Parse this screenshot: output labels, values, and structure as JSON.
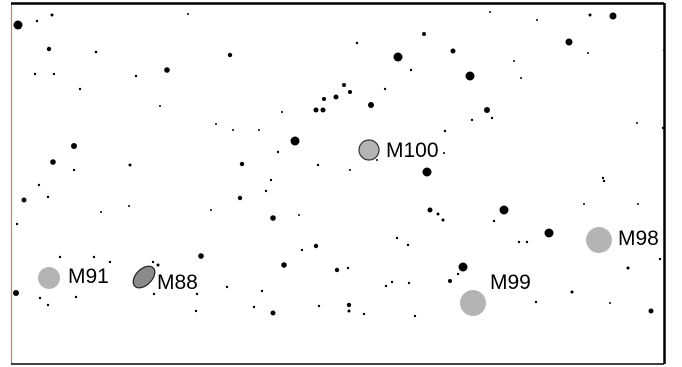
{
  "map": {
    "colors": {
      "background": "#ffffff",
      "star": "#000000",
      "galaxy_fill": "#b4b4b4",
      "galaxy_outline": "#333333",
      "frame_left": "#b08a84",
      "frame_main": "#000000"
    },
    "objects": [
      {
        "label": "M100",
        "kind": "galaxy-outlined"
      },
      {
        "label": "M98",
        "kind": "galaxy-faint"
      },
      {
        "label": "M99",
        "kind": "galaxy-faint"
      },
      {
        "label": "M91",
        "kind": "galaxy-faint"
      },
      {
        "label": "M88",
        "kind": "galaxy-outlined"
      }
    ]
  }
}
